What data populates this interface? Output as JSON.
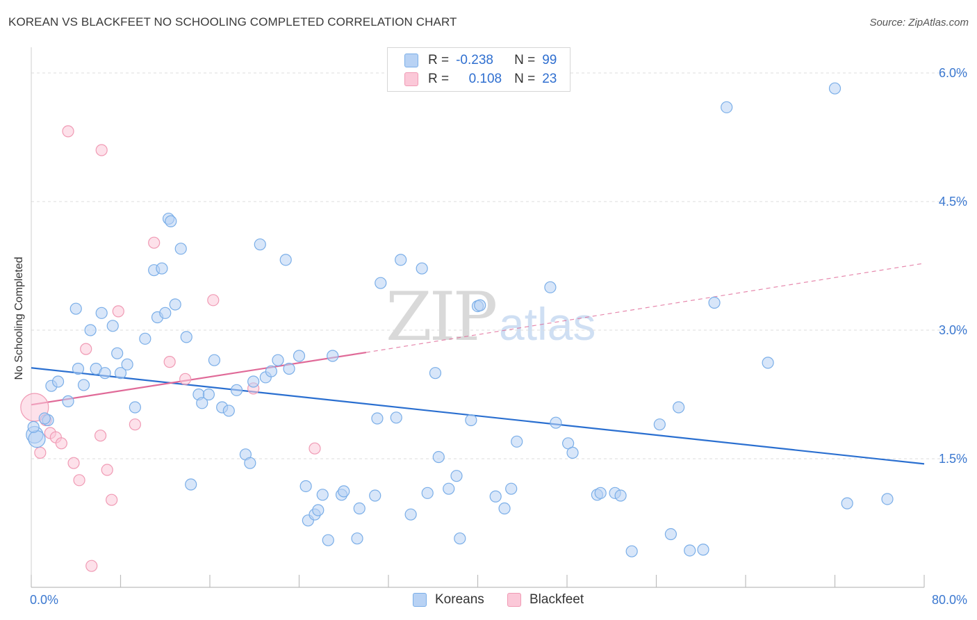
{
  "title": "KOREAN VS BLACKFEET NO SCHOOLING COMPLETED CORRELATION CHART",
  "source": "Source: ZipAtlas.com",
  "watermark": {
    "zip": "ZIP",
    "atlas": "atlas"
  },
  "legend": {
    "rows": [
      {
        "r_label": "R =",
        "r_value": "-0.238",
        "n_label": "N =",
        "n_value": "99"
      },
      {
        "r_label": "R =",
        "r_value": "0.108",
        "n_label": "N =",
        "n_value": "23"
      }
    ]
  },
  "bottom_legend": {
    "koreans": "Koreans",
    "blackfeet": "Blackfeet"
  },
  "colors": {
    "koreans": "#7aaee8",
    "blackfeet": "#f09ab4",
    "blue_line": "#2a6fd0",
    "pink_line": "#e06a98",
    "tick_label": "#3b78d0"
  },
  "chart_data": {
    "type": "scatter",
    "title": "KOREAN VS BLACKFEET NO SCHOOLING COMPLETED CORRELATION CHART",
    "xlabel": "",
    "ylabel": "No Schooling Completed",
    "xlim": [
      0,
      80
    ],
    "ylim": [
      0,
      6.3
    ],
    "x_tick_labels": [
      "0.0%",
      "80.0%"
    ],
    "y_ticks": [
      1.5,
      3.0,
      4.5,
      6.0
    ],
    "y_tick_labels": [
      "1.5%",
      "3.0%",
      "4.5%",
      "6.0%"
    ],
    "grid": true,
    "legend_placement": "top-center",
    "series": [
      {
        "name": "Koreans",
        "points": [
          [
            0.3,
            1.78
          ],
          [
            0.5,
            1.73
          ],
          [
            1.5,
            1.95
          ],
          [
            1.8,
            2.35
          ],
          [
            2.4,
            2.4
          ],
          [
            3.3,
            2.17
          ],
          [
            4.0,
            3.25
          ],
          [
            4.2,
            2.55
          ],
          [
            4.7,
            2.36
          ],
          [
            5.3,
            3.0
          ],
          [
            5.8,
            2.55
          ],
          [
            6.3,
            3.2
          ],
          [
            6.6,
            2.5
          ],
          [
            7.3,
            3.05
          ],
          [
            7.7,
            2.73
          ],
          [
            8.0,
            2.5
          ],
          [
            8.6,
            2.6
          ],
          [
            9.3,
            2.1
          ],
          [
            10.2,
            2.9
          ],
          [
            11.0,
            3.7
          ],
          [
            11.3,
            3.15
          ],
          [
            11.7,
            3.72
          ],
          [
            12.0,
            3.2
          ],
          [
            12.3,
            4.3
          ],
          [
            12.5,
            4.27
          ],
          [
            12.9,
            3.3
          ],
          [
            13.4,
            3.95
          ],
          [
            13.9,
            2.92
          ],
          [
            14.3,
            1.2
          ],
          [
            15.0,
            2.25
          ],
          [
            15.3,
            2.15
          ],
          [
            15.9,
            2.25
          ],
          [
            16.4,
            2.65
          ],
          [
            17.1,
            2.1
          ],
          [
            17.7,
            2.06
          ],
          [
            18.4,
            2.3
          ],
          [
            19.2,
            1.55
          ],
          [
            19.6,
            1.45
          ],
          [
            19.9,
            2.4
          ],
          [
            20.5,
            4.0
          ],
          [
            21.0,
            2.45
          ],
          [
            21.5,
            2.52
          ],
          [
            22.1,
            2.65
          ],
          [
            22.8,
            3.82
          ],
          [
            23.1,
            2.55
          ],
          [
            24.0,
            2.7
          ],
          [
            24.6,
            1.18
          ],
          [
            24.8,
            0.78
          ],
          [
            25.4,
            0.85
          ],
          [
            25.7,
            0.9
          ],
          [
            26.1,
            1.08
          ],
          [
            26.6,
            0.55
          ],
          [
            27.0,
            2.7
          ],
          [
            27.8,
            1.08
          ],
          [
            28.0,
            1.12
          ],
          [
            29.2,
            0.57
          ],
          [
            29.4,
            0.92
          ],
          [
            30.8,
            1.07
          ],
          [
            31.0,
            1.97
          ],
          [
            31.3,
            3.55
          ],
          [
            32.7,
            1.98
          ],
          [
            33.1,
            3.82
          ],
          [
            34.0,
            0.85
          ],
          [
            35.0,
            3.72
          ],
          [
            35.5,
            1.1
          ],
          [
            36.2,
            2.5
          ],
          [
            36.5,
            1.52
          ],
          [
            37.4,
            1.15
          ],
          [
            38.1,
            1.3
          ],
          [
            38.4,
            0.57
          ],
          [
            39.4,
            1.95
          ],
          [
            40.0,
            3.28
          ],
          [
            41.6,
            1.06
          ],
          [
            42.4,
            0.92
          ],
          [
            43.0,
            1.15
          ],
          [
            43.5,
            1.7
          ],
          [
            46.5,
            3.5
          ],
          [
            47.0,
            1.92
          ],
          [
            48.1,
            1.68
          ],
          [
            48.5,
            1.57
          ],
          [
            50.7,
            1.08
          ],
          [
            51.0,
            1.1
          ],
          [
            52.3,
            1.1
          ],
          [
            52.8,
            1.07
          ],
          [
            53.8,
            0.42
          ],
          [
            56.3,
            1.9
          ],
          [
            57.3,
            0.62
          ],
          [
            58.0,
            2.1
          ],
          [
            59.0,
            0.43
          ],
          [
            60.2,
            0.44
          ],
          [
            61.2,
            3.32
          ],
          [
            62.3,
            5.6
          ],
          [
            66.0,
            2.62
          ],
          [
            73.1,
            0.98
          ],
          [
            72.0,
            5.82
          ],
          [
            76.7,
            1.03
          ],
          [
            0.2,
            1.87
          ],
          [
            1.2,
            1.97
          ],
          [
            40.2,
            3.29
          ]
        ]
      },
      {
        "name": "Blackfeet",
        "points": [
          [
            0.3,
            2.1
          ],
          [
            0.8,
            1.57
          ],
          [
            1.3,
            1.95
          ],
          [
            1.7,
            1.8
          ],
          [
            2.2,
            1.75
          ],
          [
            2.7,
            1.68
          ],
          [
            3.3,
            5.32
          ],
          [
            3.8,
            1.45
          ],
          [
            4.3,
            1.25
          ],
          [
            4.9,
            2.78
          ],
          [
            5.4,
            0.25
          ],
          [
            6.2,
            1.77
          ],
          [
            6.3,
            5.1
          ],
          [
            6.8,
            1.37
          ],
          [
            7.2,
            1.02
          ],
          [
            7.8,
            3.22
          ],
          [
            9.3,
            1.9
          ],
          [
            11.0,
            4.02
          ],
          [
            12.4,
            2.63
          ],
          [
            13.8,
            2.43
          ],
          [
            16.3,
            3.35
          ],
          [
            19.9,
            2.32
          ],
          [
            25.4,
            1.62
          ]
        ]
      }
    ],
    "trend_lines": [
      {
        "series": "Koreans",
        "x": [
          0,
          80
        ],
        "y": [
          2.56,
          1.44
        ]
      },
      {
        "series": "Blackfeet",
        "x": [
          0,
          30
        ],
        "y": [
          2.13,
          2.74
        ],
        "dashed_extension_to": [
          80,
          3.78
        ]
      }
    ]
  }
}
